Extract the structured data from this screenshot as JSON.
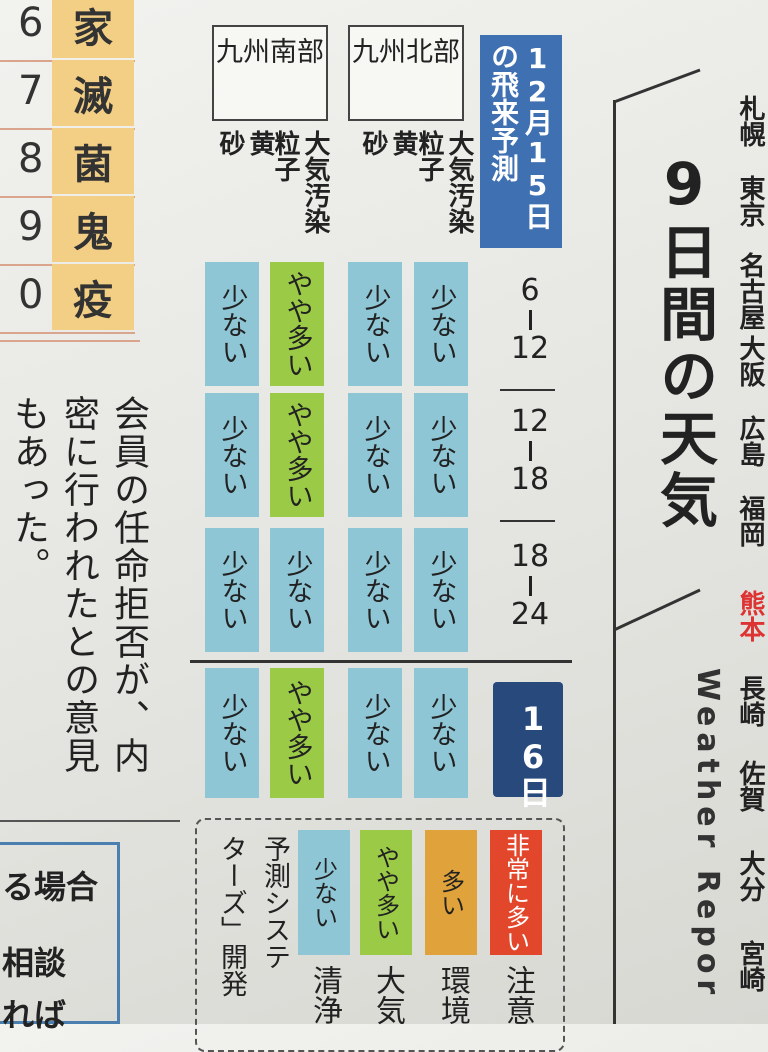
{
  "sidebar": {
    "rows": [
      {
        "number": "6",
        "word": "家"
      },
      {
        "number": "7",
        "word": "滅"
      },
      {
        "number": "8",
        "word": "菌"
      },
      {
        "number": "9",
        "word": "鬼"
      },
      {
        "number": "0",
        "word": "疫"
      }
    ]
  },
  "article": {
    "lines": [
      "会員の任命拒否が、内",
      "密に行われたとの意見",
      "もあった。"
    ]
  },
  "box": {
    "lines": [
      "る場合",
      "相談",
      "れば"
    ]
  },
  "forecast": {
    "title": "12月15日の飛来予測",
    "regions": [
      {
        "name": "九州南部",
        "columns": [
          "黄砂",
          "大気汚染粒子"
        ]
      },
      {
        "name": "九州北部",
        "columns": [
          "黄砂",
          "大気汚染粒子"
        ]
      }
    ],
    "rows": [
      {
        "from": "6",
        "to": "12",
        "cells": [
          "少ない",
          "やや多い",
          "少ない",
          "少ない"
        ]
      },
      {
        "from": "12",
        "to": "18",
        "cells": [
          "少ない",
          "やや多い",
          "少ない",
          "少ない"
        ]
      },
      {
        "from": "18",
        "to": "24",
        "cells": [
          "少ない",
          "少ない",
          "少ない",
          "少ない"
        ]
      }
    ],
    "next_day": {
      "label": "16日",
      "cells": [
        "少ない",
        "やや多い",
        "少ない",
        "少ない"
      ]
    }
  },
  "legend": {
    "levels": [
      "少ない",
      "やや多い",
      "多い",
      "非常に多い"
    ],
    "notes": [
      "清浄",
      "大気",
      "環境",
      "注意"
    ],
    "text": [
      "予測システ",
      "ターズ」開発"
    ]
  },
  "weather": {
    "title": "9日間の天気",
    "subtitle": "Weather Repor",
    "cities": [
      "札幌",
      "東京",
      "名古屋",
      "大阪",
      "広島",
      "福岡",
      "熊本",
      "長崎",
      "佐賀",
      "大分",
      "宮崎"
    ]
  }
}
